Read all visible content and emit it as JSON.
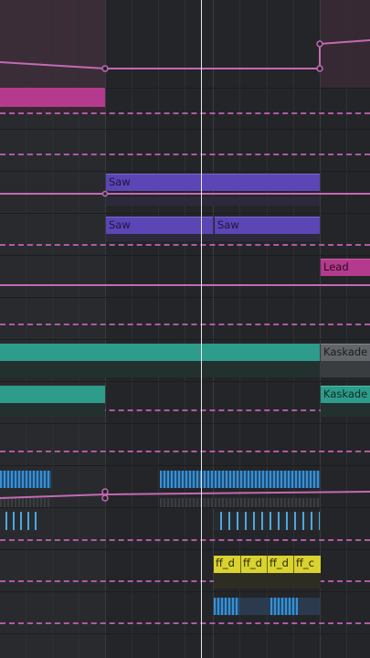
{
  "clips": {
    "saw_1": "Saw",
    "saw_2": "Saw",
    "saw_3": "Saw",
    "lead": "Lead",
    "kaskade_1": "Kaskade",
    "kaskade_2": "Kaskade",
    "ff_1": "ff_d",
    "ff_2": "ff_d",
    "ff_3": "ff_d",
    "ff_4": "ff_c"
  },
  "colors": {
    "background": "#242528",
    "magenta": "#b33a8c",
    "purple": "#5c45b4",
    "pink": "#b95d9f",
    "teal": "#2e9c8a",
    "blue": "#3b8fd1",
    "yellow": "#d9d22f",
    "automation": "#c36ab4",
    "playhead": "#e9e9e9"
  },
  "icons": {
    "automation_point": "breakpoint-icon"
  }
}
